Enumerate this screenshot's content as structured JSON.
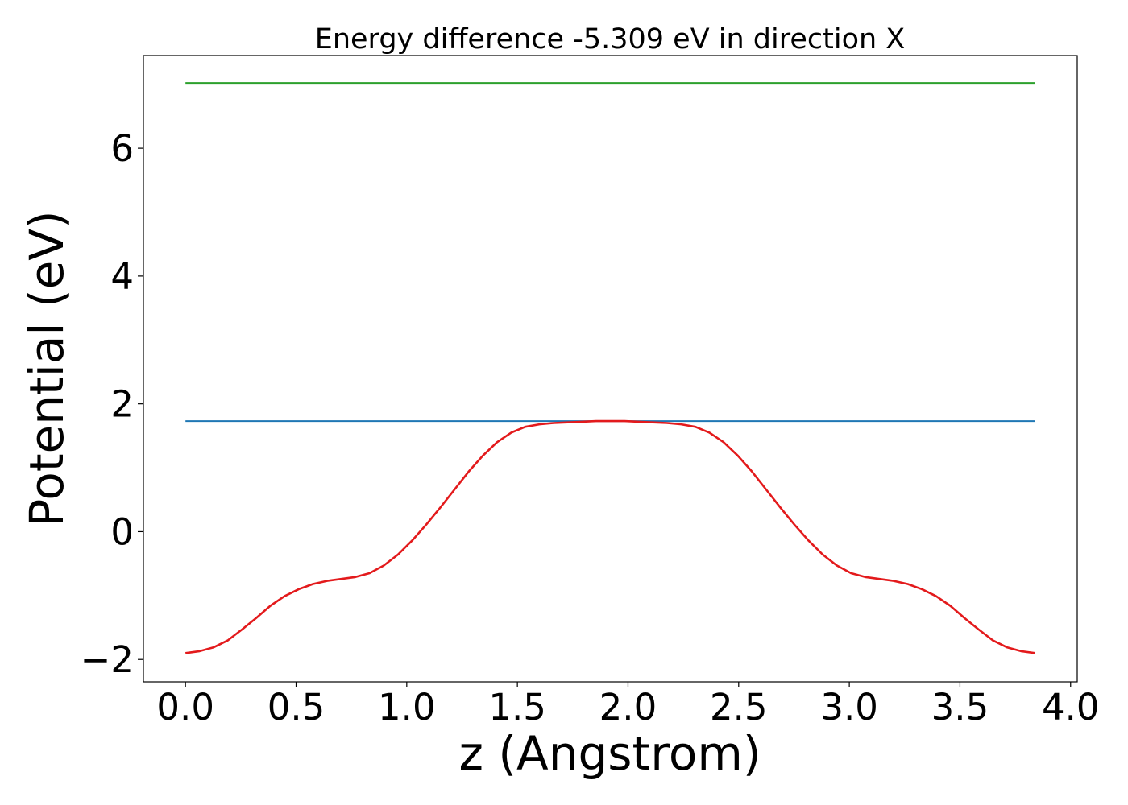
{
  "chart_data": {
    "type": "line",
    "title": "Energy difference -5.309 eV in direction X",
    "xlabel": "z (Angstrom)",
    "ylabel": "Potential (eV)",
    "xlim": [
      -0.19,
      4.03
    ],
    "ylim": [
      -2.35,
      7.45
    ],
    "xticks": [
      0.0,
      0.5,
      1.0,
      1.5,
      2.0,
      2.5,
      3.0,
      3.5,
      4.0
    ],
    "xtick_labels": [
      "0.0",
      "0.5",
      "1.0",
      "1.5",
      "2.0",
      "2.5",
      "3.0",
      "3.5",
      "4.0"
    ],
    "yticks": [
      -2,
      0,
      2,
      4,
      6
    ],
    "ytick_labels": [
      "−2",
      "0",
      "2",
      "4",
      "6"
    ],
    "grid": false,
    "series": [
      {
        "color": "#2ca02c",
        "x": [
          0.0,
          3.84
        ],
        "y": [
          7.02,
          7.02
        ]
      },
      {
        "color": "#1f77b4",
        "x": [
          0.0,
          3.84
        ],
        "y": [
          1.73,
          1.73
        ]
      },
      {
        "color": "#e31a1c",
        "x": [
          0.0,
          0.064,
          0.128,
          0.192,
          0.256,
          0.32,
          0.384,
          0.448,
          0.512,
          0.576,
          0.64,
          0.704,
          0.768,
          0.832,
          0.896,
          0.96,
          1.024,
          1.088,
          1.152,
          1.216,
          1.28,
          1.344,
          1.408,
          1.472,
          1.536,
          1.6,
          1.664,
          1.728,
          1.792,
          1.856,
          1.92,
          1.984,
          2.048,
          2.112,
          2.176,
          2.24,
          2.304,
          2.368,
          2.432,
          2.496,
          2.56,
          2.624,
          2.688,
          2.752,
          2.816,
          2.88,
          2.944,
          3.008,
          3.072,
          3.136,
          3.2,
          3.264,
          3.328,
          3.392,
          3.456,
          3.52,
          3.584,
          3.648,
          3.712,
          3.776,
          3.84
        ],
        "y": [
          -1.9,
          -1.87,
          -1.81,
          -1.7,
          -1.53,
          -1.35,
          -1.16,
          -1.01,
          -0.9,
          -0.82,
          -0.77,
          -0.74,
          -0.71,
          -0.65,
          -0.53,
          -0.36,
          -0.14,
          0.11,
          0.38,
          0.66,
          0.94,
          1.19,
          1.4,
          1.55,
          1.64,
          1.68,
          1.7,
          1.71,
          1.72,
          1.73,
          1.73,
          1.73,
          1.72,
          1.71,
          1.7,
          1.68,
          1.64,
          1.55,
          1.4,
          1.19,
          0.94,
          0.66,
          0.38,
          0.11,
          -0.14,
          -0.36,
          -0.53,
          -0.65,
          -0.71,
          -0.74,
          -0.77,
          -0.82,
          -0.9,
          -1.01,
          -1.16,
          -1.35,
          -1.53,
          -1.7,
          -1.81,
          -1.87,
          -1.9
        ]
      }
    ]
  }
}
